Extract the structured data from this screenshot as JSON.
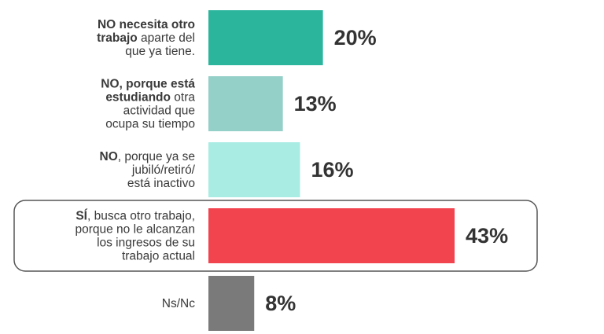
{
  "chart_data": {
    "type": "hbar",
    "categories": [
      [
        [
          {
            "text": "NO necesita otro",
            "bold": true
          }
        ],
        [
          {
            "text": "trabajo",
            "bold": true
          },
          {
            "text": " aparte del",
            "bold": false
          }
        ],
        [
          {
            "text": "que ya tiene.",
            "bold": false
          }
        ]
      ],
      [
        [
          {
            "text": "NO, porque está",
            "bold": true
          }
        ],
        [
          {
            "text": "estudiando",
            "bold": true
          },
          {
            "text": " otra",
            "bold": false
          }
        ],
        [
          {
            "text": "actividad que",
            "bold": false
          }
        ],
        [
          {
            "text": "ocupa su tiempo",
            "bold": false
          }
        ]
      ],
      [
        [
          {
            "text": "NO",
            "bold": true
          },
          {
            "text": ", porque ya se",
            "bold": false
          }
        ],
        [
          {
            "text": "jubiló/retiró/",
            "bold": false
          }
        ],
        [
          {
            "text": "está inactivo",
            "bold": false
          }
        ]
      ],
      [
        [
          {
            "text": "SÍ",
            "bold": true
          },
          {
            "text": ", busca otro trabajo,",
            "bold": false
          }
        ],
        [
          {
            "text": "porque no le alcanzan",
            "bold": false
          }
        ],
        [
          {
            "text": "los ingresos de su",
            "bold": false
          }
        ],
        [
          {
            "text": "trabajo actual",
            "bold": false
          }
        ]
      ],
      [
        [
          {
            "text": "Ns/Nc",
            "bold": false
          }
        ]
      ]
    ],
    "values": [
      20,
      13,
      16,
      43,
      8
    ],
    "value_labels": [
      "20%",
      "13%",
      "16%",
      "43%",
      "8%"
    ],
    "colors": [
      "#2ab59c",
      "#94d0c7",
      "#a9ece4",
      "#f2444f",
      "#7a7a7a"
    ],
    "highlight": 3
  }
}
